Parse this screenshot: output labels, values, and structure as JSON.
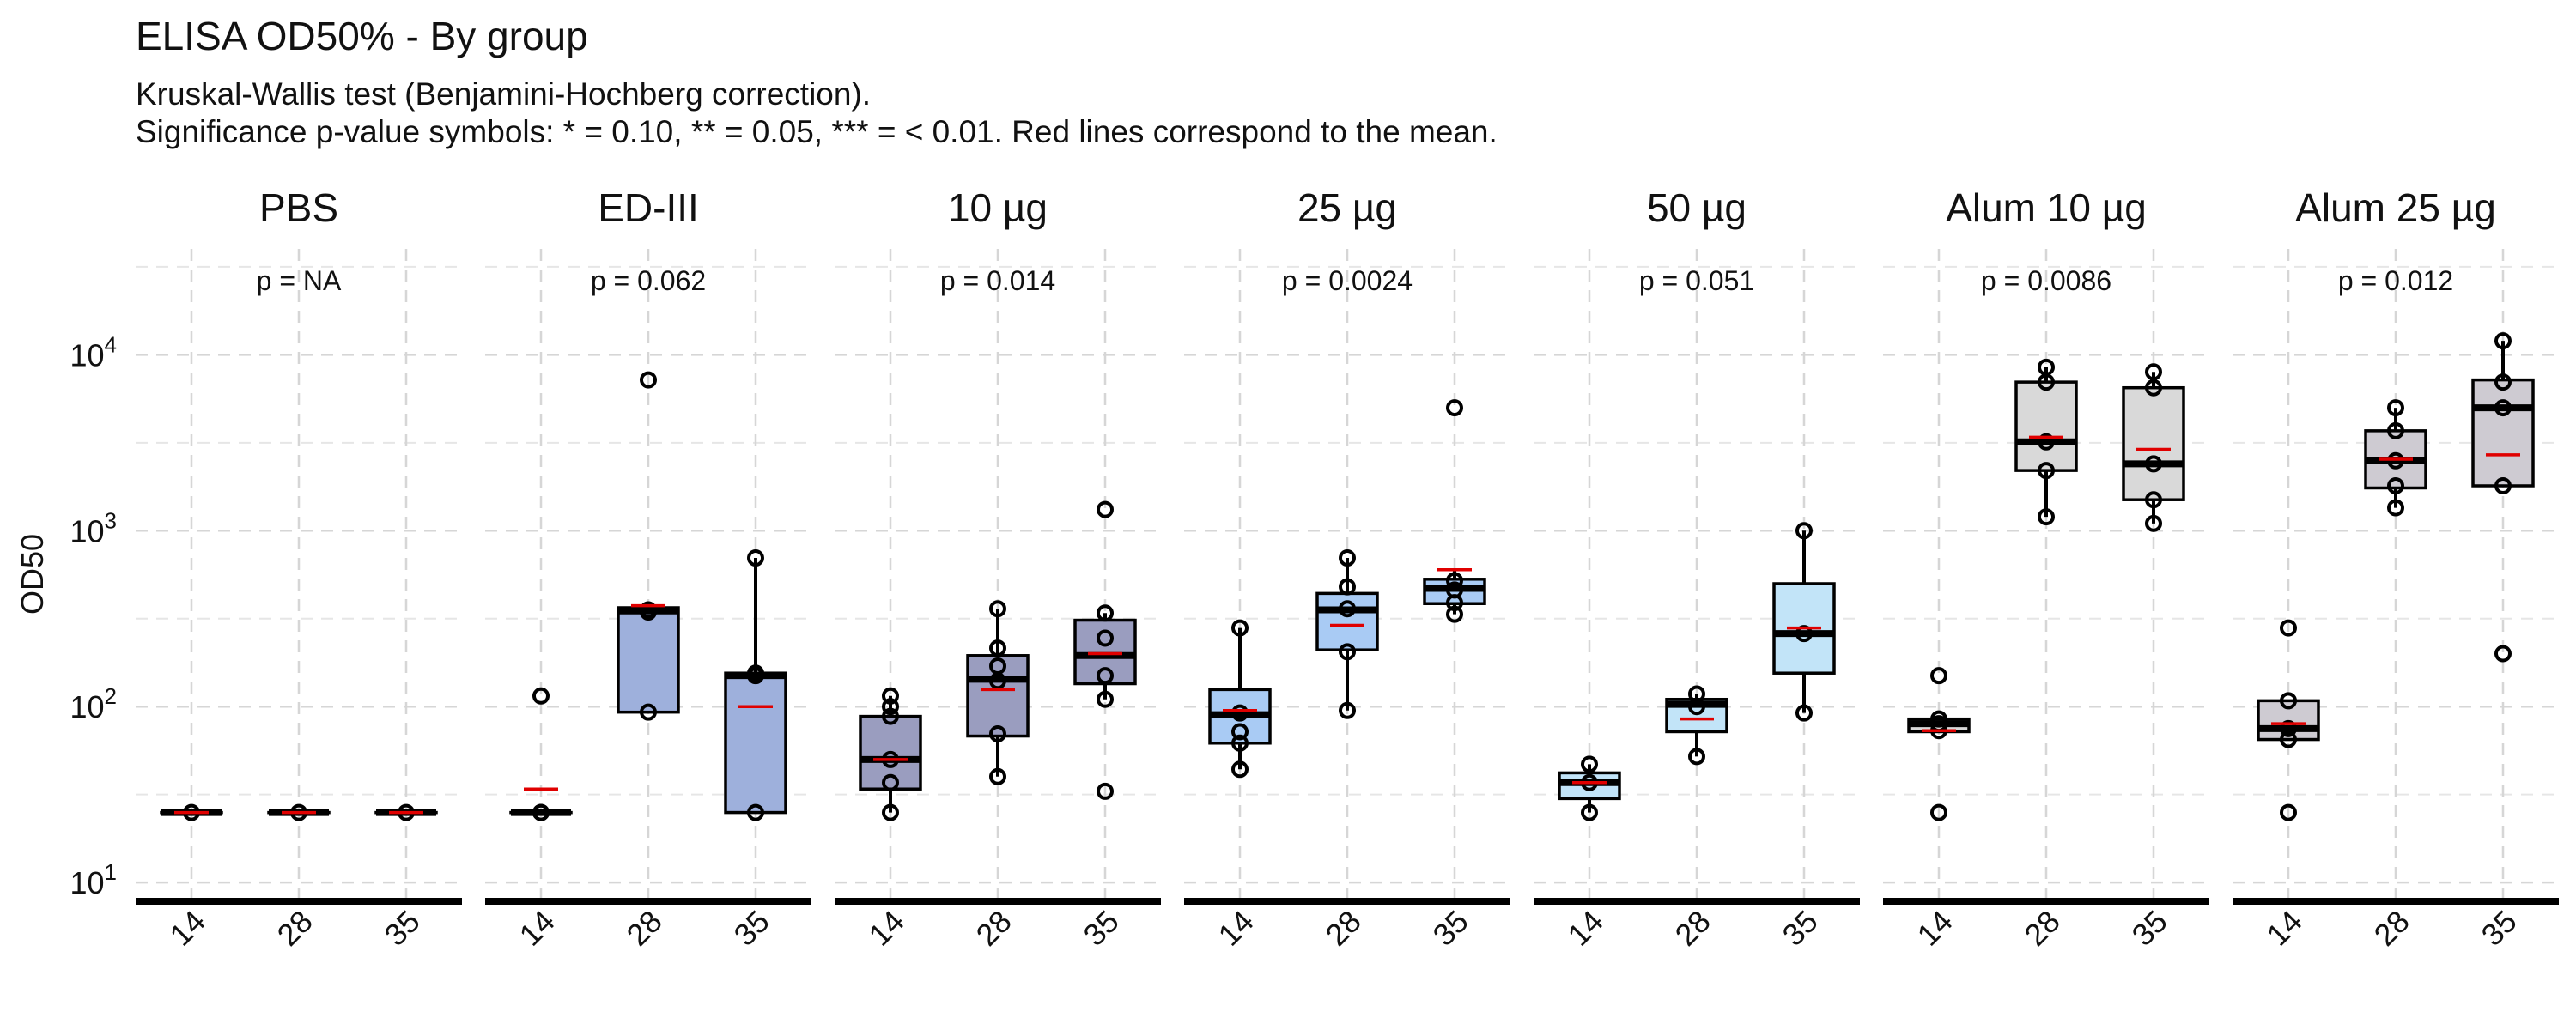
{
  "title": "ELISA OD50% - By group",
  "subtitle_line1": "Kruskal-Wallis test (Benjamini-Hochberg correction).",
  "subtitle_line2": "Significance p-value symbols: * = 0.10, ** = 0.05, *** = < 0.01. Red lines correspond to the mean.",
  "chart_data": {
    "type": "box",
    "ylabel": "OD50",
    "yscale": "log10",
    "ylim": [
      8,
      40000
    ],
    "yticks": [
      10,
      100,
      1000,
      10000
    ],
    "ytick_bases": [
      "10",
      "10",
      "10",
      "10"
    ],
    "ytick_exps": [
      "1",
      "2",
      "3",
      "4"
    ],
    "grid": true,
    "x_categories": [
      "14",
      "28",
      "35"
    ],
    "mean_color": "#e00000",
    "panels": [
      {
        "label": "PBS",
        "pvalue": "p = NA",
        "fill": "#b8b8c8",
        "boxes": [
          {
            "x": "14",
            "q1": 25,
            "median": 25,
            "q3": 25,
            "whisker_low": 25,
            "whisker_high": 25,
            "mean": 25,
            "points": [
              25
            ]
          },
          {
            "x": "28",
            "q1": 25,
            "median": 25,
            "q3": 25,
            "whisker_low": 25,
            "whisker_high": 25,
            "mean": 25,
            "points": [
              25
            ]
          },
          {
            "x": "35",
            "q1": 25,
            "median": 25,
            "q3": 25,
            "whisker_low": 25,
            "whisker_high": 25,
            "mean": 25,
            "points": [
              25
            ]
          }
        ]
      },
      {
        "label": "ED-III",
        "pvalue": "p = 0.062",
        "fill": "#9eb0dc",
        "boxes": [
          {
            "x": "14",
            "q1": 25,
            "median": 25,
            "q3": 25,
            "whisker_low": 25,
            "whisker_high": 25,
            "mean": 34,
            "points": [
              25,
              25,
              25,
              115
            ]
          },
          {
            "x": "28",
            "q1": 93,
            "median": 350,
            "q3": 365,
            "whisker_low": 93,
            "whisker_high": 370,
            "mean": 375,
            "points": [
              93,
              345,
              355,
              7200
            ]
          },
          {
            "x": "35",
            "q1": 25,
            "median": 150,
            "q3": 155,
            "whisker_low": 25,
            "whisker_high": 700,
            "mean": 100,
            "points": [
              25,
              150,
              155,
              700
            ]
          }
        ]
      },
      {
        "label": "10 µg",
        "pvalue": "p = 0.014",
        "fill": "#9a9dbf",
        "boxes": [
          {
            "x": "14",
            "q1": 34,
            "median": 50,
            "q3": 88,
            "whisker_low": 25,
            "whisker_high": 115,
            "mean": 50,
            "points": [
              25,
              37,
              50,
              88,
              100,
              115
            ]
          },
          {
            "x": "28",
            "q1": 68,
            "median": 143,
            "q3": 195,
            "whisker_low": 40,
            "whisker_high": 360,
            "mean": 125,
            "points": [
              40,
              70,
              140,
              170,
              215,
              360
            ]
          },
          {
            "x": "35",
            "q1": 135,
            "median": 195,
            "q3": 310,
            "whisker_low": 110,
            "whisker_high": 340,
            "mean": 200,
            "points": [
              33,
              110,
              150,
              245,
              340,
              1320
            ]
          }
        ]
      },
      {
        "label": "25 µg",
        "pvalue": "p = 0.0024",
        "fill": "#a9cbf4",
        "boxes": [
          {
            "x": "14",
            "q1": 62,
            "median": 90,
            "q3": 125,
            "whisker_low": 44,
            "whisker_high": 280,
            "mean": 95,
            "points": [
              44,
              62,
              72,
              92,
              280
            ]
          },
          {
            "x": "28",
            "q1": 210,
            "median": 355,
            "q3": 440,
            "whisker_low": 95,
            "whisker_high": 700,
            "mean": 290,
            "points": [
              95,
              205,
              360,
              480,
              700
            ]
          },
          {
            "x": "35",
            "q1": 385,
            "median": 470,
            "q3": 530,
            "whisker_low": 335,
            "whisker_high": 600,
            "mean": 600,
            "points": [
              335,
              390,
              460,
              520,
              5000
            ]
          }
        ]
      },
      {
        "label": "50 µg",
        "pvalue": "p = 0.051",
        "fill": "#c2e4f8",
        "boxes": [
          {
            "x": "14",
            "q1": 30,
            "median": 37,
            "q3": 42,
            "whisker_low": 25,
            "whisker_high": 47,
            "mean": 37,
            "points": [
              25,
              37,
              47
            ]
          },
          {
            "x": "28",
            "q1": 72,
            "median": 103,
            "q3": 110,
            "whisker_low": 52,
            "whisker_high": 118,
            "mean": 85,
            "points": [
              52,
              100,
              118
            ]
          },
          {
            "x": "35",
            "q1": 155,
            "median": 260,
            "q3": 500,
            "whisker_low": 92,
            "whisker_high": 1000,
            "mean": 280,
            "points": [
              92,
              260,
              1000
            ]
          }
        ]
      },
      {
        "label": "Alum 10 µg",
        "pvalue": "p = 0.0086",
        "fill": "#d9d9d9",
        "boxes": [
          {
            "x": "14",
            "q1": 72,
            "median": 80,
            "q3": 85,
            "whisker_low": 72,
            "whisker_high": 85,
            "mean": 73,
            "points": [
              25,
              73,
              80,
              85,
              150
            ]
          },
          {
            "x": "28",
            "q1": 2200,
            "median": 3200,
            "q3": 7000,
            "whisker_low": 1200,
            "whisker_high": 8500,
            "mean": 3400,
            "points": [
              1200,
              2200,
              3200,
              7000,
              8500
            ]
          },
          {
            "x": "35",
            "q1": 1500,
            "median": 2400,
            "q3": 6500,
            "whisker_low": 1100,
            "whisker_high": 8000,
            "mean": 2900,
            "points": [
              1100,
              1500,
              2400,
              6500,
              8000
            ]
          }
        ]
      },
      {
        "label": "Alum 25 µg",
        "pvalue": "p = 0.012",
        "fill": "#cecbd2",
        "boxes": [
          {
            "x": "14",
            "q1": 65,
            "median": 75,
            "q3": 108,
            "whisker_low": 65,
            "whisker_high": 108,
            "mean": 80,
            "points": [
              25,
              65,
              75,
              108,
              280
            ]
          },
          {
            "x": "28",
            "q1": 1750,
            "median": 2500,
            "q3": 3700,
            "whisker_low": 1350,
            "whisker_high": 5000,
            "mean": 2550,
            "points": [
              1350,
              1800,
              2500,
              3700,
              5000
            ]
          },
          {
            "x": "35",
            "q1": 1800,
            "median": 5000,
            "q3": 7200,
            "whisker_low": 1800,
            "whisker_high": 12000,
            "mean": 2700,
            "points": [
              200,
              1800,
              5000,
              7000,
              12000
            ]
          }
        ]
      }
    ]
  }
}
